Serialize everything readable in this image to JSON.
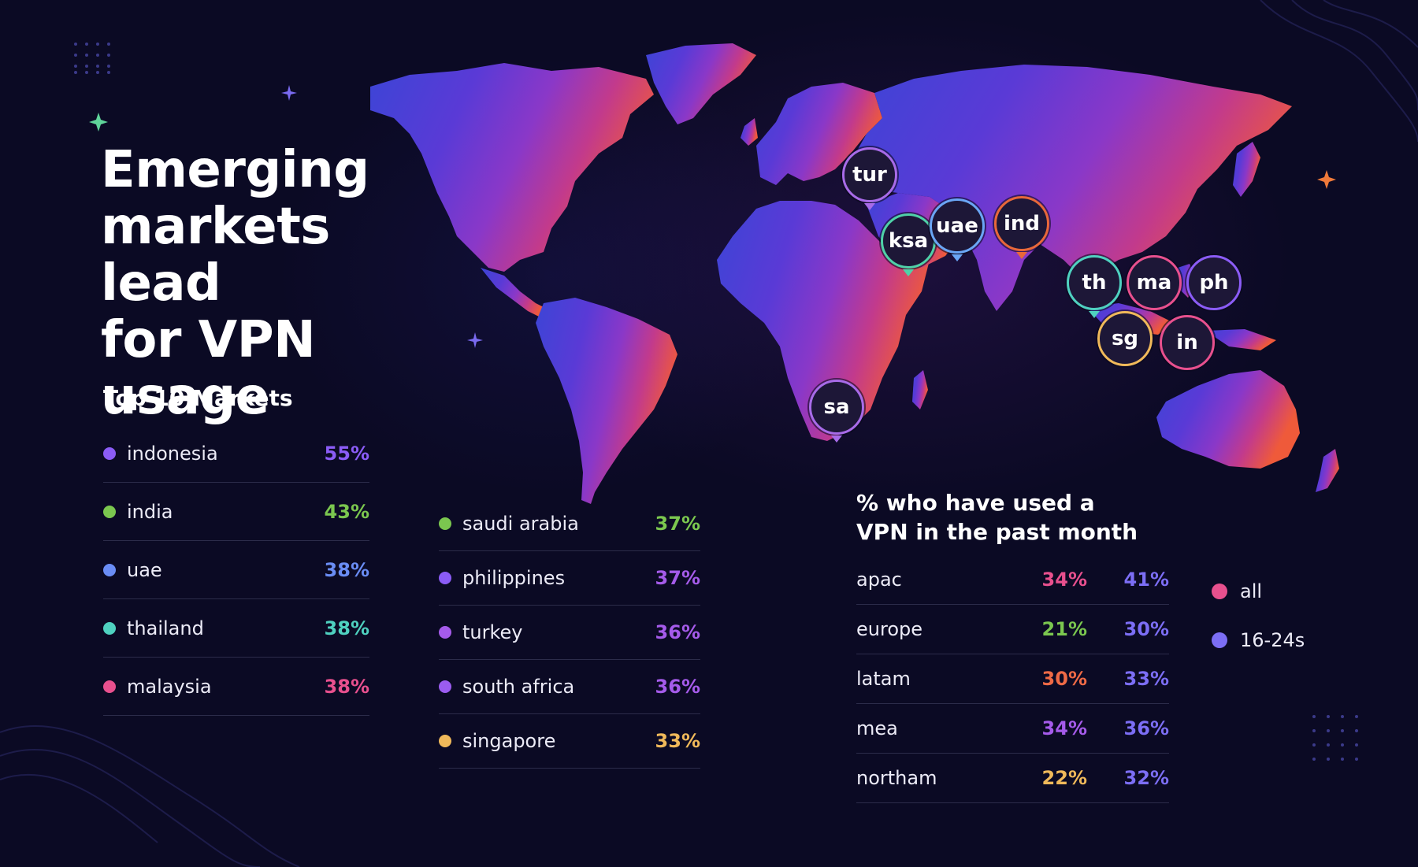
{
  "title": "Emerging\nmarkets lead\nfor VPN usage",
  "top_markets": {
    "heading": "Top 10 Markets",
    "column1": [
      {
        "name": "indonesia",
        "value": "55%",
        "color": "#8b5cf6"
      },
      {
        "name": "india",
        "value": "43%",
        "color": "#7bc74f"
      },
      {
        "name": "uae",
        "value": "38%",
        "color": "#6a8df5"
      },
      {
        "name": "thailand",
        "value": "38%",
        "color": "#4fd1c0"
      },
      {
        "name": "malaysia",
        "value": "38%",
        "color": "#e8508e"
      }
    ],
    "column2": [
      {
        "name": "saudi arabia",
        "value": "37%",
        "color": "#7bc74f"
      },
      {
        "name": "philippines",
        "value": "37%",
        "color": "#8b5cf6"
      },
      {
        "name": "turkey",
        "value": "36%",
        "color": "#a55bea"
      },
      {
        "name": "south africa",
        "value": "36%",
        "color": "#9b5cf0"
      },
      {
        "name": "singapore",
        "value": "33%",
        "color": "#f0b95a"
      }
    ]
  },
  "map_pins": [
    {
      "label": "tur",
      "color": "#a86be8"
    },
    {
      "label": "ksa",
      "color": "#4fd1a8"
    },
    {
      "label": "uae",
      "color": "#6aa6f5"
    },
    {
      "label": "ind",
      "color": "#e8683a"
    },
    {
      "label": "th",
      "color": "#4fd1c0"
    },
    {
      "label": "ma",
      "color": "#e8508e"
    },
    {
      "label": "ph",
      "color": "#8b5cf6"
    },
    {
      "label": "sg",
      "color": "#f0b95a"
    },
    {
      "label": "in",
      "color": "#e8508e"
    },
    {
      "label": "sa",
      "color": "#a86be8"
    }
  ],
  "vpn_usage": {
    "heading": "% who have used a VPN in the past month",
    "rows": [
      {
        "region": "apac",
        "all": "34%",
        "all_color": "#e8508e",
        "age_16_24": "41%"
      },
      {
        "region": "europe",
        "all": "21%",
        "all_color": "#7bc74f",
        "age_16_24": "30%"
      },
      {
        "region": "latam",
        "all": "30%",
        "all_color": "#ef6a46",
        "age_16_24": "33%"
      },
      {
        "region": "mea",
        "all": "34%",
        "all_color": "#a55bea",
        "age_16_24": "36%"
      },
      {
        "region": "northam",
        "all": "22%",
        "all_color": "#f0b95a",
        "age_16_24": "32%"
      }
    ],
    "legend": [
      {
        "label": "all",
        "color": "#e8508e"
      },
      {
        "label": "16-24s",
        "color": "#7c6ef5"
      }
    ]
  }
}
